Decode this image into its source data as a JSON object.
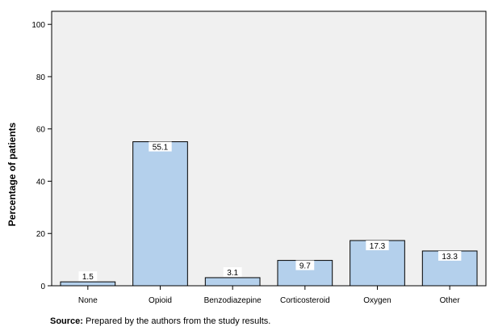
{
  "chart_data": {
    "type": "bar",
    "categories": [
      "None",
      "Opioid",
      "Benzodiazepine",
      "Corticosteroid",
      "Oxygen",
      "Other"
    ],
    "values": [
      1.5,
      55.1,
      3.1,
      9.7,
      17.3,
      13.3
    ],
    "data_labels": [
      "1.5",
      "55.1",
      "3.1",
      "9.7",
      "17.3",
      "13.3"
    ],
    "title": "",
    "xlabel": "",
    "ylabel": "Percentage of patients",
    "ylim": [
      0,
      100
    ],
    "yticks": [
      0,
      20,
      40,
      60,
      80,
      100
    ],
    "grid": false,
    "legend": "none",
    "colors": {
      "bar_fill": "#b4d0ec",
      "bar_stroke": "#000000",
      "plot_background": "#f0f0f0",
      "label_box": "#ffffff"
    }
  },
  "source": {
    "label": "Source:",
    "text": "Prepared by the authors from the study results."
  }
}
